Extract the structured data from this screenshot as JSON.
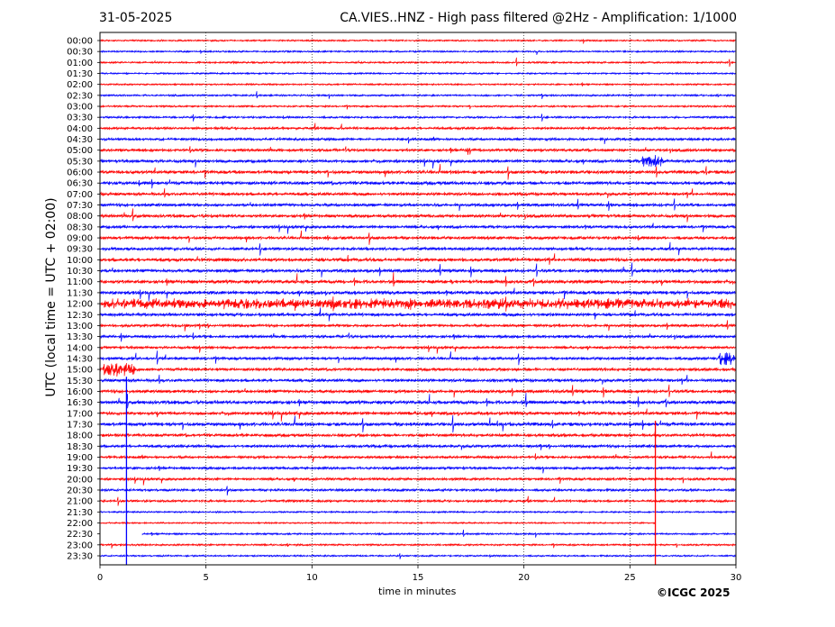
{
  "header": {
    "date": "31-05-2025",
    "title": "CA.VIES..HNZ - High pass filtered @2Hz - Amplification: 1/1000"
  },
  "footer": {
    "copyright": "©ICGC 2025"
  },
  "colors": {
    "red": "#ff0000",
    "blue": "#0000ff",
    "grid": "#000000"
  },
  "chart_data": {
    "type": "line",
    "xlabel": "time in minutes",
    "ylabel": "UTC (local time = UTC + 02:00)",
    "xlim": [
      0,
      30
    ],
    "xticks": [
      0,
      5,
      10,
      15,
      20,
      25,
      30
    ],
    "vertical_gridlines": [
      5,
      10,
      15,
      20,
      25
    ],
    "rows": [
      "00:00",
      "00:30",
      "01:00",
      "01:30",
      "02:00",
      "02:30",
      "03:00",
      "03:30",
      "04:00",
      "04:30",
      "05:00",
      "05:30",
      "06:00",
      "06:30",
      "07:00",
      "07:30",
      "08:00",
      "08:30",
      "09:00",
      "09:30",
      "10:00",
      "10:30",
      "11:00",
      "11:30",
      "12:00",
      "12:30",
      "13:00",
      "13:30",
      "14:00",
      "14:30",
      "15:00",
      "15:30",
      "16:00",
      "16:30",
      "17:00",
      "17:30",
      "18:00",
      "18:30",
      "19:00",
      "19:30",
      "20:00",
      "20:30",
      "21:00",
      "21:30",
      "22:00",
      "22:30",
      "23:00",
      "23:30"
    ],
    "row_colors": [
      "red",
      "blue",
      "red",
      "blue",
      "red",
      "blue",
      "red",
      "blue",
      "red",
      "blue",
      "red",
      "blue",
      "red",
      "blue",
      "red",
      "blue",
      "red",
      "blue",
      "red",
      "blue",
      "red",
      "blue",
      "red",
      "blue",
      "red",
      "blue",
      "red",
      "blue",
      "red",
      "blue",
      "red",
      "blue",
      "red",
      "blue",
      "red",
      "blue",
      "red",
      "blue",
      "red",
      "blue",
      "red",
      "blue",
      "red",
      "blue",
      "red",
      "blue",
      "red",
      "blue"
    ],
    "activity_levels": [
      0.15,
      0.15,
      0.2,
      0.15,
      0.15,
      0.2,
      0.2,
      0.25,
      0.4,
      0.45,
      0.5,
      0.6,
      0.7,
      0.7,
      0.6,
      0.6,
      0.6,
      0.55,
      0.6,
      0.6,
      0.75,
      0.7,
      0.75,
      0.75,
      0.7,
      0.65,
      0.5,
      0.5,
      0.45,
      0.55,
      0.55,
      0.6,
      0.65,
      0.75,
      0.7,
      0.75,
      0.6,
      0.55,
      0.45,
      0.45,
      0.45,
      0.4,
      0.35,
      0.15,
      0.1,
      0.2,
      0.2,
      0.15
    ],
    "events": [
      {
        "row": "15:00",
        "start_min": 0.0,
        "end_min": 1.7,
        "amplitude": 1.0
      },
      {
        "row": "14:30",
        "start_min": 29.2,
        "end_min": 30.0,
        "amplitude": 1.0
      },
      {
        "row": "05:00",
        "start_min": 17.3,
        "end_min": 17.5,
        "amplitude": 1.0
      },
      {
        "row": "05:30",
        "start_min": 25.6,
        "end_min": 26.6,
        "amplitude": 1.0
      },
      {
        "row": "12:00",
        "start_min": 0.2,
        "end_min": 30.0,
        "amplitude": 0.7
      }
    ],
    "spikes": [
      {
        "row": "15:30",
        "minute": 1.25,
        "down_to_row": "23:30",
        "color": "blue"
      },
      {
        "row": "17:30",
        "minute": 26.2,
        "down_to_row": "23:30",
        "color": "red"
      }
    ],
    "partial_rows": [
      {
        "row": "22:00",
        "end_min": 26.2
      },
      {
        "row": "22:30",
        "start_min": 2.0,
        "end_min": 30.0
      }
    ]
  }
}
